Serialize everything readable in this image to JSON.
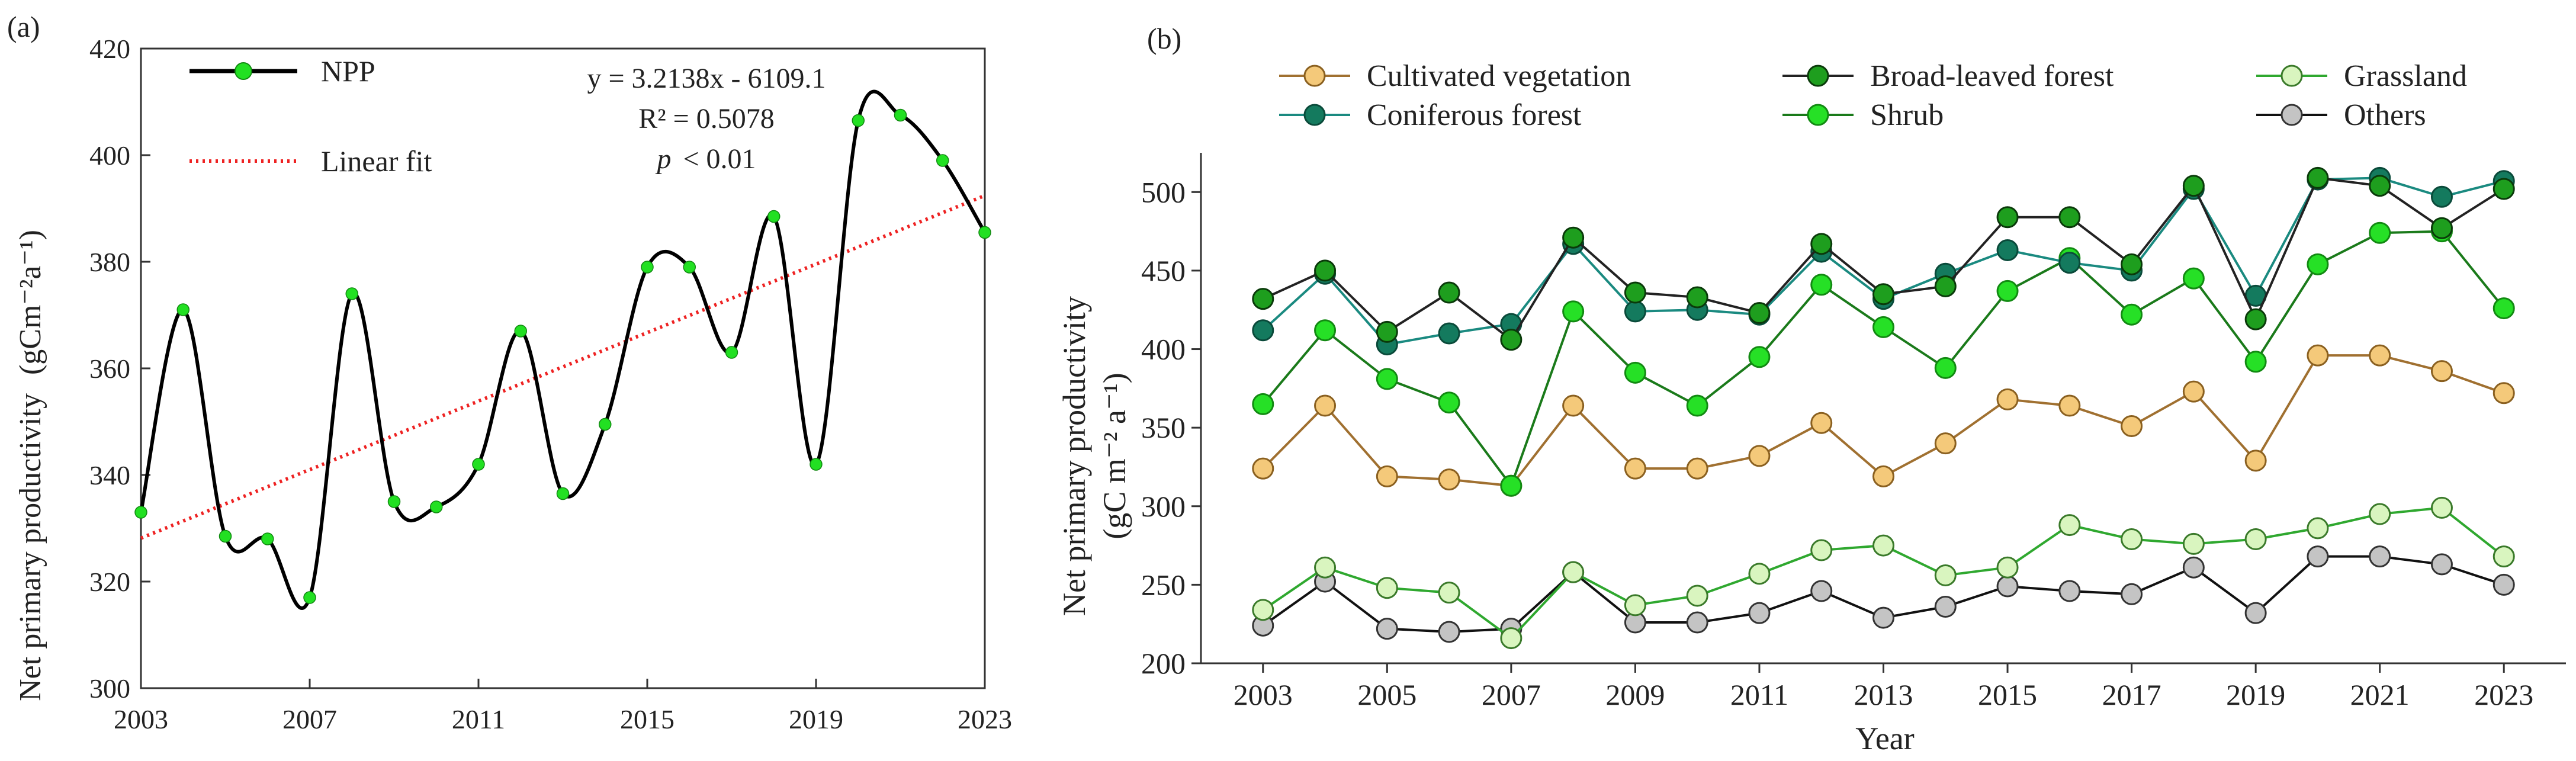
{
  "chart_data": [
    {
      "type": "line",
      "panel_label": "(a)",
      "title": "",
      "xlabel": "",
      "ylabel_main": "Net primary productivity",
      "ylabel_unit": "(gCm⁻²a⁻¹)",
      "xlim": [
        2003,
        2023
      ],
      "ylim": [
        300,
        420
      ],
      "xticks": [
        2003,
        2007,
        2011,
        2015,
        2019,
        2023
      ],
      "yticks": [
        300,
        320,
        340,
        360,
        380,
        400,
        420
      ],
      "legend": {
        "position": "top-left",
        "entries": [
          "NPP",
          "Linear fit"
        ]
      },
      "annotation": {
        "equation": "y = 3.2138x - 6109.1",
        "r2_label": "R² = 0.5078",
        "p_symbol": "p",
        "p_rest": "< 0.01"
      },
      "series": [
        {
          "name": "NPP",
          "color": "#000000",
          "marker_color": "#22e022",
          "x": [
            2003,
            2004,
            2005,
            2006,
            2007,
            2008,
            2009,
            2010,
            2011,
            2012,
            2013,
            2014,
            2015,
            2016,
            2017,
            2018,
            2019,
            2020,
            2021,
            2022,
            2023
          ],
          "values": [
            333,
            371,
            328.5,
            328,
            317,
            374,
            335,
            334,
            342,
            367,
            336.5,
            349.5,
            379,
            379,
            363,
            388.5,
            342,
            406.5,
            407.5,
            399,
            385.5
          ]
        },
        {
          "name": "Linear fit",
          "color": "#ee2222",
          "slope": 3.2138,
          "intercept": -6109.1
        }
      ]
    },
    {
      "type": "line",
      "panel_label": "(b)",
      "title": "",
      "xlabel": "Year",
      "ylabel_main": "Net primary productivity",
      "ylabel_unit": "(gC m⁻² a⁻¹)",
      "xlim": [
        2002,
        2024
      ],
      "ylim": [
        200,
        525
      ],
      "xticks": [
        2003,
        2005,
        2007,
        2009,
        2011,
        2013,
        2015,
        2017,
        2019,
        2021,
        2023
      ],
      "yticks": [
        200,
        250,
        300,
        350,
        400,
        450,
        500
      ],
      "legend": {
        "position": "top"
      },
      "x": [
        2003,
        2004,
        2005,
        2006,
        2007,
        2008,
        2009,
        2010,
        2011,
        2012,
        2013,
        2014,
        2015,
        2016,
        2017,
        2018,
        2019,
        2020,
        2021,
        2022,
        2023
      ],
      "series": [
        {
          "name": "Cultivated vegetation",
          "line": "#a07030",
          "fill": "#f4c97a",
          "stroke": "#8a6020",
          "values": [
            324,
            364,
            319,
            317,
            313,
            364,
            324,
            324,
            332,
            353,
            319,
            340,
            368,
            364,
            351,
            373,
            329,
            396,
            396,
            386,
            372
          ]
        },
        {
          "name": "Broad-leaved forest",
          "line": "#222222",
          "fill": "#1e9e1e",
          "stroke": "#0a3a0a",
          "values": [
            432,
            450,
            411,
            436,
            406,
            471,
            436,
            433,
            423,
            467,
            435,
            440,
            484,
            484,
            454,
            504,
            419,
            509,
            504,
            477,
            502
          ]
        },
        {
          "name": "Grassland",
          "line": "#2fa82f",
          "fill": "#d9f5bf",
          "stroke": "#3a7a2a",
          "values": [
            234,
            261,
            248,
            245,
            216,
            258,
            237,
            243,
            257,
            272,
            275,
            256,
            261,
            288,
            279,
            276,
            279,
            286,
            295,
            299,
            268
          ]
        },
        {
          "name": "Coniferous forest",
          "line": "#1a8a80",
          "fill": "#147a5e",
          "stroke": "#0a4a3a",
          "values": [
            412,
            448,
            403,
            410,
            416,
            467,
            424,
            425,
            422,
            462,
            432,
            448,
            463,
            455,
            450,
            502,
            434,
            508,
            509,
            497,
            507
          ]
        },
        {
          "name": "Shrub",
          "line": "#1a7a1a",
          "fill": "#26e026",
          "stroke": "#128a12",
          "values": [
            365,
            412,
            381,
            366,
            313,
            424,
            385,
            364,
            395,
            441,
            414,
            388,
            437,
            458,
            422,
            445,
            392,
            454,
            474,
            475,
            426
          ]
        },
        {
          "name": "Others",
          "line": "#111111",
          "fill": "#c4c4c4",
          "stroke": "#333333",
          "values": [
            224,
            252,
            222,
            220,
            222,
            258,
            226,
            226,
            232,
            246,
            229,
            236,
            249,
            246,
            244,
            261,
            232,
            268,
            268,
            263,
            250
          ]
        }
      ]
    }
  ]
}
